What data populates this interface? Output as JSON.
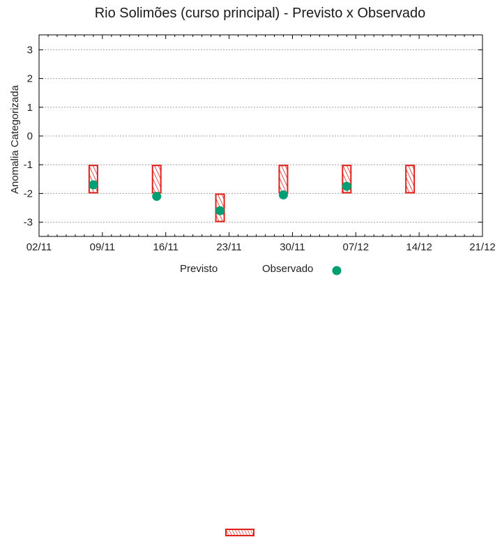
{
  "chart_data": {
    "type": "interval+scatter",
    "title": "Rio Solimões (curso principal) - Previsto x Observado",
    "xlabel": "",
    "ylabel": "Anomalia Categorizada",
    "ylim": [
      -3.5,
      3.5
    ],
    "yticks": [
      3,
      2,
      1,
      0,
      -1,
      -2,
      -3
    ],
    "xticks": [
      "02/11",
      "09/11",
      "16/11",
      "23/11",
      "30/11",
      "07/12",
      "14/12",
      "21/12"
    ],
    "grid": "horizontal dotted",
    "legend_position": "bottom",
    "series": [
      {
        "name": "Previsto",
        "style": "red hatched box",
        "x": [
          "08/11",
          "15/11",
          "22/11",
          "29/11",
          "06/12",
          "13/12"
        ],
        "low": [
          -2,
          -2,
          -3,
          -2,
          -2,
          -2
        ],
        "high": [
          -1,
          -1,
          -2,
          -1,
          -1,
          -1
        ]
      },
      {
        "name": "Observado",
        "style": "green dot",
        "x": [
          "08/11",
          "15/11",
          "22/11",
          "29/11",
          "06/12"
        ],
        "values": [
          -1.7,
          -2.1,
          -2.6,
          -2.05,
          -1.75
        ]
      }
    ]
  },
  "legend": {
    "previsto": "Previsto",
    "observado": "Observado"
  },
  "colors": {
    "previsto": "#e0201a",
    "observado": "#009e73",
    "grid": "#a0a0a0"
  }
}
